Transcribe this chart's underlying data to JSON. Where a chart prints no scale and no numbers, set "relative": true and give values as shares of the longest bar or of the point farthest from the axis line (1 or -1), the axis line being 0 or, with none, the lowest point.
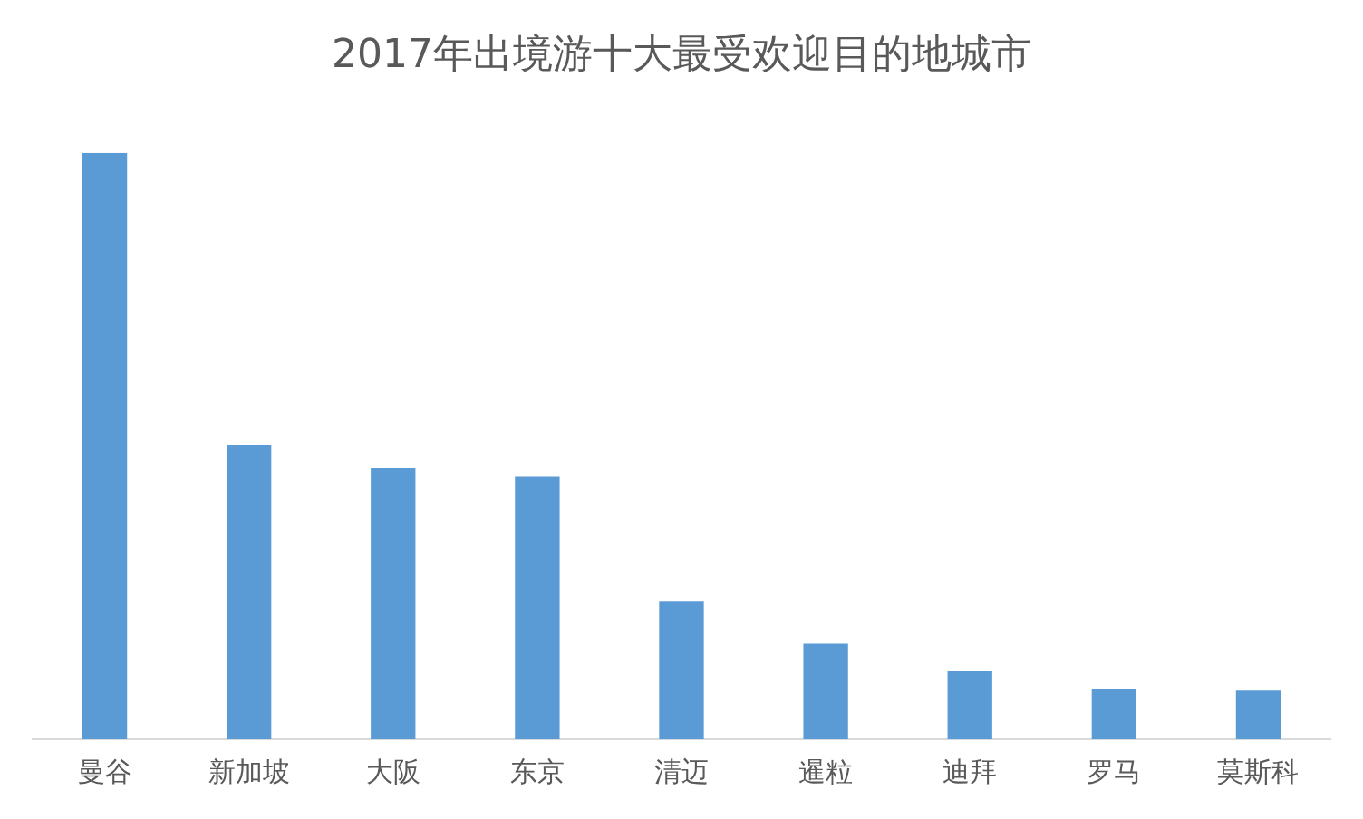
{
  "chart_data": {
    "type": "bar",
    "title": "2017年出境游十大最受欢迎目的地城市",
    "categories": [
      "曼谷",
      "新加坡",
      "大阪",
      "东京",
      "清迈",
      "暹粒",
      "迪拜",
      "罗马",
      "莫斯科"
    ],
    "values": [
      1,
      0.502,
      0.462,
      0.449,
      0.236,
      0.163,
      0.116,
      0.086,
      0.083
    ],
    "color": "#5b9bd5",
    "relative": true,
    "grid": false,
    "legend": false
  }
}
